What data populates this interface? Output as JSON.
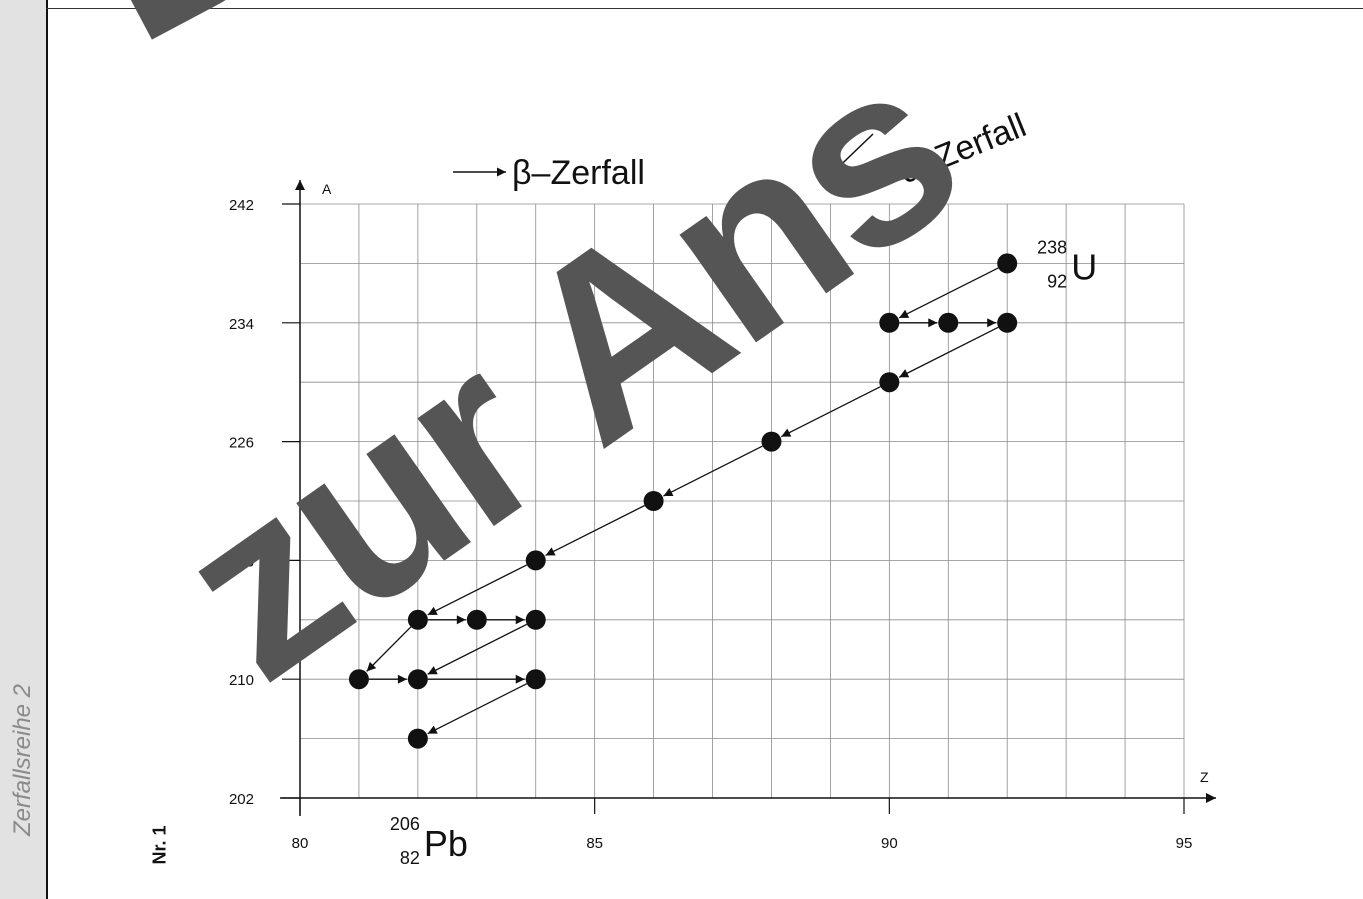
{
  "sheet": {
    "sidebar_label": "Zerfallsreihe 2",
    "number": "Nr. 1",
    "watermark_line1": "Dow",
    "watermark_line2": "zur Ans"
  },
  "legend": {
    "beta_label": "β–Zerfall",
    "alpha_label": "α–Zerfall"
  },
  "chart_data": {
    "type": "scatter",
    "xlabel": "Z",
    "ylabel": "A",
    "xlim": [
      80,
      95
    ],
    "ylim": [
      202,
      242
    ],
    "xticks": [
      80,
      85,
      90,
      95
    ],
    "yticks": [
      202,
      210,
      218,
      226,
      234,
      242
    ],
    "grid": true,
    "points": [
      {
        "z": 92,
        "a": 238
      },
      {
        "z": 90,
        "a": 234
      },
      {
        "z": 91,
        "a": 234
      },
      {
        "z": 92,
        "a": 234
      },
      {
        "z": 90,
        "a": 230
      },
      {
        "z": 88,
        "a": 226
      },
      {
        "z": 86,
        "a": 222
      },
      {
        "z": 84,
        "a": 218
      },
      {
        "z": 82,
        "a": 214
      },
      {
        "z": 83,
        "a": 214
      },
      {
        "z": 84,
        "a": 214
      },
      {
        "z": 81,
        "a": 210
      },
      {
        "z": 82,
        "a": 210
      },
      {
        "z": 84,
        "a": 210
      },
      {
        "z": 82,
        "a": 206
      }
    ],
    "decays": [
      {
        "type": "alpha",
        "from": [
          92,
          238
        ],
        "to": [
          90,
          234
        ]
      },
      {
        "type": "beta",
        "from": [
          90,
          234
        ],
        "to": [
          91,
          234
        ]
      },
      {
        "type": "beta",
        "from": [
          91,
          234
        ],
        "to": [
          92,
          234
        ]
      },
      {
        "type": "alpha",
        "from": [
          92,
          234
        ],
        "to": [
          90,
          230
        ]
      },
      {
        "type": "alpha",
        "from": [
          90,
          230
        ],
        "to": [
          88,
          226
        ]
      },
      {
        "type": "alpha",
        "from": [
          88,
          226
        ],
        "to": [
          86,
          222
        ]
      },
      {
        "type": "alpha",
        "from": [
          86,
          222
        ],
        "to": [
          84,
          218
        ]
      },
      {
        "type": "alpha",
        "from": [
          84,
          218
        ],
        "to": [
          82,
          214
        ]
      },
      {
        "type": "beta",
        "from": [
          82,
          214
        ],
        "to": [
          83,
          214
        ]
      },
      {
        "type": "beta",
        "from": [
          83,
          214
        ],
        "to": [
          84,
          214
        ]
      },
      {
        "type": "alpha",
        "from": [
          84,
          214
        ],
        "to": [
          82,
          210
        ]
      },
      {
        "type": "alpha",
        "from": [
          82,
          214
        ],
        "to": [
          81,
          210
        ]
      },
      {
        "type": "beta",
        "from": [
          81,
          210
        ],
        "to": [
          82,
          210
        ]
      },
      {
        "type": "beta",
        "from": [
          82,
          210
        ],
        "to": [
          84,
          210
        ]
      },
      {
        "type": "alpha",
        "from": [
          84,
          210
        ],
        "to": [
          82,
          206
        ]
      }
    ],
    "annotations": [
      {
        "mass": "238",
        "atomic": "92",
        "symbol": "U",
        "z": 92,
        "a": 238
      },
      {
        "mass": "206",
        "atomic": "82",
        "symbol": "Pb",
        "z": 82,
        "a": 206
      }
    ]
  }
}
